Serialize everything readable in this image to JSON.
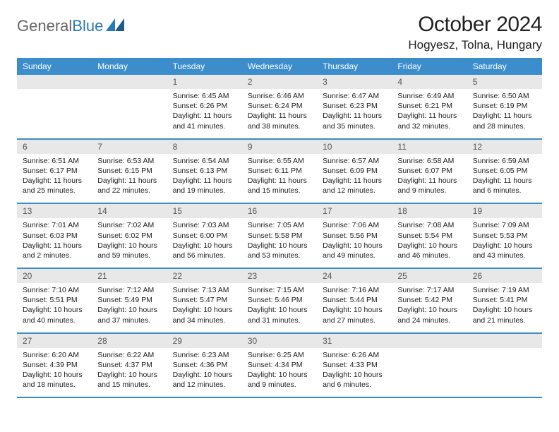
{
  "brand": {
    "name_part1": "General",
    "name_part2": "Blue",
    "logo_color": "#2a7ab9"
  },
  "header": {
    "month_title": "October 2024",
    "location": "Hogyesz, Tolna, Hungary"
  },
  "colors": {
    "header_bg": "#3c8dcc",
    "header_text": "#ffffff",
    "daynum_bg": "#e8e8e8",
    "daynum_text": "#555555",
    "rule": "#3c8dcc",
    "body_text": "#222222",
    "page_bg": "#ffffff"
  },
  "day_names": [
    "Sunday",
    "Monday",
    "Tuesday",
    "Wednesday",
    "Thursday",
    "Friday",
    "Saturday"
  ],
  "weeks": [
    [
      {
        "n": "",
        "sunrise": "",
        "sunset": "",
        "daylight": ""
      },
      {
        "n": "",
        "sunrise": "",
        "sunset": "",
        "daylight": ""
      },
      {
        "n": "1",
        "sunrise": "Sunrise: 6:45 AM",
        "sunset": "Sunset: 6:26 PM",
        "daylight": "Daylight: 11 hours and 41 minutes."
      },
      {
        "n": "2",
        "sunrise": "Sunrise: 6:46 AM",
        "sunset": "Sunset: 6:24 PM",
        "daylight": "Daylight: 11 hours and 38 minutes."
      },
      {
        "n": "3",
        "sunrise": "Sunrise: 6:47 AM",
        "sunset": "Sunset: 6:23 PM",
        "daylight": "Daylight: 11 hours and 35 minutes."
      },
      {
        "n": "4",
        "sunrise": "Sunrise: 6:49 AM",
        "sunset": "Sunset: 6:21 PM",
        "daylight": "Daylight: 11 hours and 32 minutes."
      },
      {
        "n": "5",
        "sunrise": "Sunrise: 6:50 AM",
        "sunset": "Sunset: 6:19 PM",
        "daylight": "Daylight: 11 hours and 28 minutes."
      }
    ],
    [
      {
        "n": "6",
        "sunrise": "Sunrise: 6:51 AM",
        "sunset": "Sunset: 6:17 PM",
        "daylight": "Daylight: 11 hours and 25 minutes."
      },
      {
        "n": "7",
        "sunrise": "Sunrise: 6:53 AM",
        "sunset": "Sunset: 6:15 PM",
        "daylight": "Daylight: 11 hours and 22 minutes."
      },
      {
        "n": "8",
        "sunrise": "Sunrise: 6:54 AM",
        "sunset": "Sunset: 6:13 PM",
        "daylight": "Daylight: 11 hours and 19 minutes."
      },
      {
        "n": "9",
        "sunrise": "Sunrise: 6:55 AM",
        "sunset": "Sunset: 6:11 PM",
        "daylight": "Daylight: 11 hours and 15 minutes."
      },
      {
        "n": "10",
        "sunrise": "Sunrise: 6:57 AM",
        "sunset": "Sunset: 6:09 PM",
        "daylight": "Daylight: 11 hours and 12 minutes."
      },
      {
        "n": "11",
        "sunrise": "Sunrise: 6:58 AM",
        "sunset": "Sunset: 6:07 PM",
        "daylight": "Daylight: 11 hours and 9 minutes."
      },
      {
        "n": "12",
        "sunrise": "Sunrise: 6:59 AM",
        "sunset": "Sunset: 6:05 PM",
        "daylight": "Daylight: 11 hours and 6 minutes."
      }
    ],
    [
      {
        "n": "13",
        "sunrise": "Sunrise: 7:01 AM",
        "sunset": "Sunset: 6:03 PM",
        "daylight": "Daylight: 11 hours and 2 minutes."
      },
      {
        "n": "14",
        "sunrise": "Sunrise: 7:02 AM",
        "sunset": "Sunset: 6:02 PM",
        "daylight": "Daylight: 10 hours and 59 minutes."
      },
      {
        "n": "15",
        "sunrise": "Sunrise: 7:03 AM",
        "sunset": "Sunset: 6:00 PM",
        "daylight": "Daylight: 10 hours and 56 minutes."
      },
      {
        "n": "16",
        "sunrise": "Sunrise: 7:05 AM",
        "sunset": "Sunset: 5:58 PM",
        "daylight": "Daylight: 10 hours and 53 minutes."
      },
      {
        "n": "17",
        "sunrise": "Sunrise: 7:06 AM",
        "sunset": "Sunset: 5:56 PM",
        "daylight": "Daylight: 10 hours and 49 minutes."
      },
      {
        "n": "18",
        "sunrise": "Sunrise: 7:08 AM",
        "sunset": "Sunset: 5:54 PM",
        "daylight": "Daylight: 10 hours and 46 minutes."
      },
      {
        "n": "19",
        "sunrise": "Sunrise: 7:09 AM",
        "sunset": "Sunset: 5:53 PM",
        "daylight": "Daylight: 10 hours and 43 minutes."
      }
    ],
    [
      {
        "n": "20",
        "sunrise": "Sunrise: 7:10 AM",
        "sunset": "Sunset: 5:51 PM",
        "daylight": "Daylight: 10 hours and 40 minutes."
      },
      {
        "n": "21",
        "sunrise": "Sunrise: 7:12 AM",
        "sunset": "Sunset: 5:49 PM",
        "daylight": "Daylight: 10 hours and 37 minutes."
      },
      {
        "n": "22",
        "sunrise": "Sunrise: 7:13 AM",
        "sunset": "Sunset: 5:47 PM",
        "daylight": "Daylight: 10 hours and 34 minutes."
      },
      {
        "n": "23",
        "sunrise": "Sunrise: 7:15 AM",
        "sunset": "Sunset: 5:46 PM",
        "daylight": "Daylight: 10 hours and 31 minutes."
      },
      {
        "n": "24",
        "sunrise": "Sunrise: 7:16 AM",
        "sunset": "Sunset: 5:44 PM",
        "daylight": "Daylight: 10 hours and 27 minutes."
      },
      {
        "n": "25",
        "sunrise": "Sunrise: 7:17 AM",
        "sunset": "Sunset: 5:42 PM",
        "daylight": "Daylight: 10 hours and 24 minutes."
      },
      {
        "n": "26",
        "sunrise": "Sunrise: 7:19 AM",
        "sunset": "Sunset: 5:41 PM",
        "daylight": "Daylight: 10 hours and 21 minutes."
      }
    ],
    [
      {
        "n": "27",
        "sunrise": "Sunrise: 6:20 AM",
        "sunset": "Sunset: 4:39 PM",
        "daylight": "Daylight: 10 hours and 18 minutes."
      },
      {
        "n": "28",
        "sunrise": "Sunrise: 6:22 AM",
        "sunset": "Sunset: 4:37 PM",
        "daylight": "Daylight: 10 hours and 15 minutes."
      },
      {
        "n": "29",
        "sunrise": "Sunrise: 6:23 AM",
        "sunset": "Sunset: 4:36 PM",
        "daylight": "Daylight: 10 hours and 12 minutes."
      },
      {
        "n": "30",
        "sunrise": "Sunrise: 6:25 AM",
        "sunset": "Sunset: 4:34 PM",
        "daylight": "Daylight: 10 hours and 9 minutes."
      },
      {
        "n": "31",
        "sunrise": "Sunrise: 6:26 AM",
        "sunset": "Sunset: 4:33 PM",
        "daylight": "Daylight: 10 hours and 6 minutes."
      },
      {
        "n": "",
        "sunrise": "",
        "sunset": "",
        "daylight": ""
      },
      {
        "n": "",
        "sunrise": "",
        "sunset": "",
        "daylight": ""
      }
    ]
  ]
}
